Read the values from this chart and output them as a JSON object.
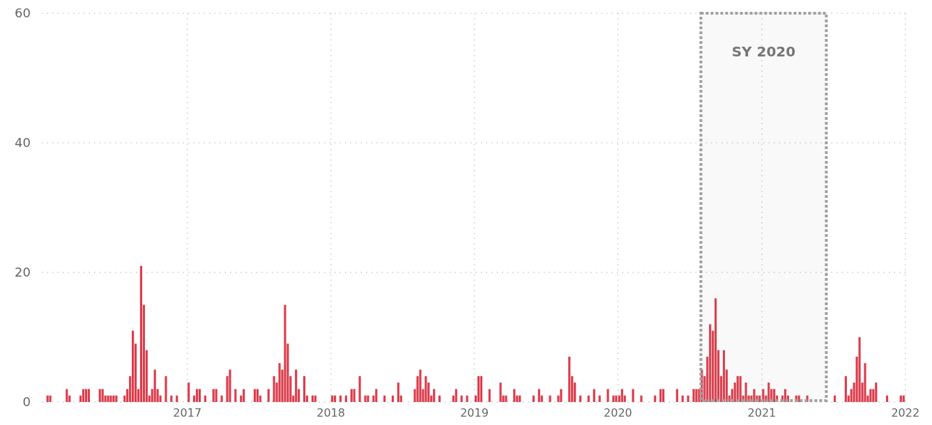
{
  "chart_data": {
    "type": "bar",
    "x": [
      "2016-01-08",
      "2016-01-15",
      "2016-02-26",
      "2016-03-04",
      "2016-04-01",
      "2016-04-08",
      "2016-04-15",
      "2016-04-22",
      "2016-05-20",
      "2016-05-27",
      "2016-06-03",
      "2016-06-10",
      "2016-06-17",
      "2016-06-24",
      "2016-07-01",
      "2016-07-22",
      "2016-07-29",
      "2016-08-05",
      "2016-08-12",
      "2016-08-19",
      "2016-08-26",
      "2016-09-02",
      "2016-09-09",
      "2016-09-16",
      "2016-09-23",
      "2016-09-30",
      "2016-10-07",
      "2016-10-14",
      "2016-10-21",
      "2016-11-04",
      "2016-11-18",
      "2016-12-02",
      "2017-01-01",
      "2017-01-15",
      "2017-01-22",
      "2017-01-29",
      "2017-02-12",
      "2017-03-05",
      "2017-03-12",
      "2017-03-26",
      "2017-04-09",
      "2017-04-16",
      "2017-04-30",
      "2017-05-14",
      "2017-05-21",
      "2017-06-18",
      "2017-06-25",
      "2017-07-02",
      "2017-07-23",
      "2017-08-06",
      "2017-08-13",
      "2017-08-20",
      "2017-08-27",
      "2017-09-03",
      "2017-09-10",
      "2017-09-17",
      "2017-09-24",
      "2017-10-01",
      "2017-10-08",
      "2017-10-22",
      "2017-10-29",
      "2017-11-12",
      "2017-11-19",
      "2018-01-01",
      "2018-01-08",
      "2018-01-22",
      "2018-02-05",
      "2018-02-19",
      "2018-02-26",
      "2018-03-12",
      "2018-03-26",
      "2018-04-02",
      "2018-04-16",
      "2018-04-23",
      "2018-05-14",
      "2018-06-04",
      "2018-06-18",
      "2018-06-25",
      "2018-07-30",
      "2018-08-06",
      "2018-08-13",
      "2018-08-20",
      "2018-08-27",
      "2018-09-03",
      "2018-09-10",
      "2018-09-17",
      "2018-10-01",
      "2018-11-05",
      "2018-11-12",
      "2018-11-26",
      "2018-12-10",
      "2019-01-01",
      "2019-01-08",
      "2019-01-15",
      "2019-02-05",
      "2019-03-05",
      "2019-03-12",
      "2019-03-19",
      "2019-04-09",
      "2019-04-16",
      "2019-04-23",
      "2019-05-28",
      "2019-06-11",
      "2019-06-18",
      "2019-07-09",
      "2019-07-30",
      "2019-08-06",
      "2019-08-27",
      "2019-09-03",
      "2019-09-10",
      "2019-09-24",
      "2019-10-15",
      "2019-10-29",
      "2019-11-12",
      "2019-12-03",
      "2019-12-17",
      "2019-12-24",
      "2020-01-01",
      "2020-01-08",
      "2020-01-15",
      "2020-02-05",
      "2020-02-26",
      "2020-04-01",
      "2020-04-15",
      "2020-04-22",
      "2020-05-27",
      "2020-06-10",
      "2020-06-24",
      "2020-07-08",
      "2020-07-15",
      "2020-07-22",
      "2020-07-29",
      "2020-08-05",
      "2020-08-12",
      "2020-08-19",
      "2020-08-26",
      "2020-09-02",
      "2020-09-09",
      "2020-09-16",
      "2020-09-23",
      "2020-09-30",
      "2020-10-07",
      "2020-10-14",
      "2020-10-21",
      "2020-10-28",
      "2020-11-04",
      "2020-11-11",
      "2020-11-18",
      "2020-11-25",
      "2020-12-02",
      "2020-12-09",
      "2020-12-16",
      "2020-12-23",
      "2021-01-01",
      "2021-01-08",
      "2021-01-15",
      "2021-01-22",
      "2021-01-29",
      "2021-02-05",
      "2021-02-19",
      "2021-02-26",
      "2021-03-05",
      "2021-03-26",
      "2021-04-02",
      "2021-04-23",
      "2021-07-02",
      "2021-07-30",
      "2021-08-06",
      "2021-08-13",
      "2021-08-20",
      "2021-08-27",
      "2021-09-03",
      "2021-09-10",
      "2021-09-17",
      "2021-09-24",
      "2021-10-01",
      "2021-10-08",
      "2021-10-15",
      "2021-11-12",
      "2021-12-17",
      "2021-12-24"
    ],
    "values": [
      1,
      1,
      2,
      1,
      1,
      2,
      2,
      2,
      2,
      2,
      1,
      1,
      1,
      1,
      1,
      1,
      2,
      4,
      11,
      9,
      2,
      21,
      15,
      8,
      1,
      2,
      5,
      2,
      1,
      4,
      1,
      1,
      3,
      1,
      2,
      2,
      1,
      2,
      2,
      1,
      4,
      5,
      2,
      1,
      2,
      2,
      2,
      1,
      2,
      4,
      3,
      6,
      5,
      15,
      9,
      4,
      1,
      5,
      2,
      4,
      1,
      1,
      1,
      1,
      1,
      1,
      1,
      2,
      2,
      4,
      1,
      1,
      1,
      2,
      1,
      1,
      3,
      1,
      2,
      4,
      5,
      2,
      4,
      3,
      1,
      2,
      1,
      1,
      2,
      1,
      1,
      1,
      4,
      4,
      2,
      3,
      1,
      1,
      2,
      1,
      1,
      1,
      2,
      1,
      1,
      1,
      2,
      7,
      4,
      3,
      1,
      1,
      2,
      1,
      2,
      1,
      1,
      1,
      2,
      1,
      2,
      1,
      1,
      2,
      2,
      2,
      1,
      1,
      2,
      2,
      2,
      5,
      4,
      7,
      12,
      11,
      16,
      8,
      4,
      8,
      5,
      1,
      2,
      3,
      4,
      4,
      1,
      3,
      1,
      1,
      2,
      1,
      1,
      2,
      1,
      3,
      2,
      2,
      1,
      1,
      2,
      1,
      1,
      1,
      1,
      1,
      4,
      1,
      2,
      3,
      7,
      10,
      3,
      6,
      1,
      2,
      2,
      3,
      1,
      1,
      1
    ],
    "color": "#dc3c4b",
    "xlim": [
      "2015-12-28",
      "2022-01-12"
    ],
    "xticks": [
      {
        "value": "2017-01-01",
        "label": "2017"
      },
      {
        "value": "2018-01-01",
        "label": "2018"
      },
      {
        "value": "2019-01-01",
        "label": "2019"
      },
      {
        "value": "2020-01-01",
        "label": "2020"
      },
      {
        "value": "2021-01-01",
        "label": "2021"
      },
      {
        "value": "2022-01-01",
        "label": "2022"
      }
    ],
    "ylim": [
      0,
      60
    ],
    "yticks": [
      0,
      20,
      40,
      60
    ],
    "grid": true,
    "bands": [
      {
        "axis": "x",
        "from": "2020-07-30",
        "to": "2021-06-14",
        "label": "SY 2020",
        "color": "#a0a0a0"
      }
    ]
  }
}
